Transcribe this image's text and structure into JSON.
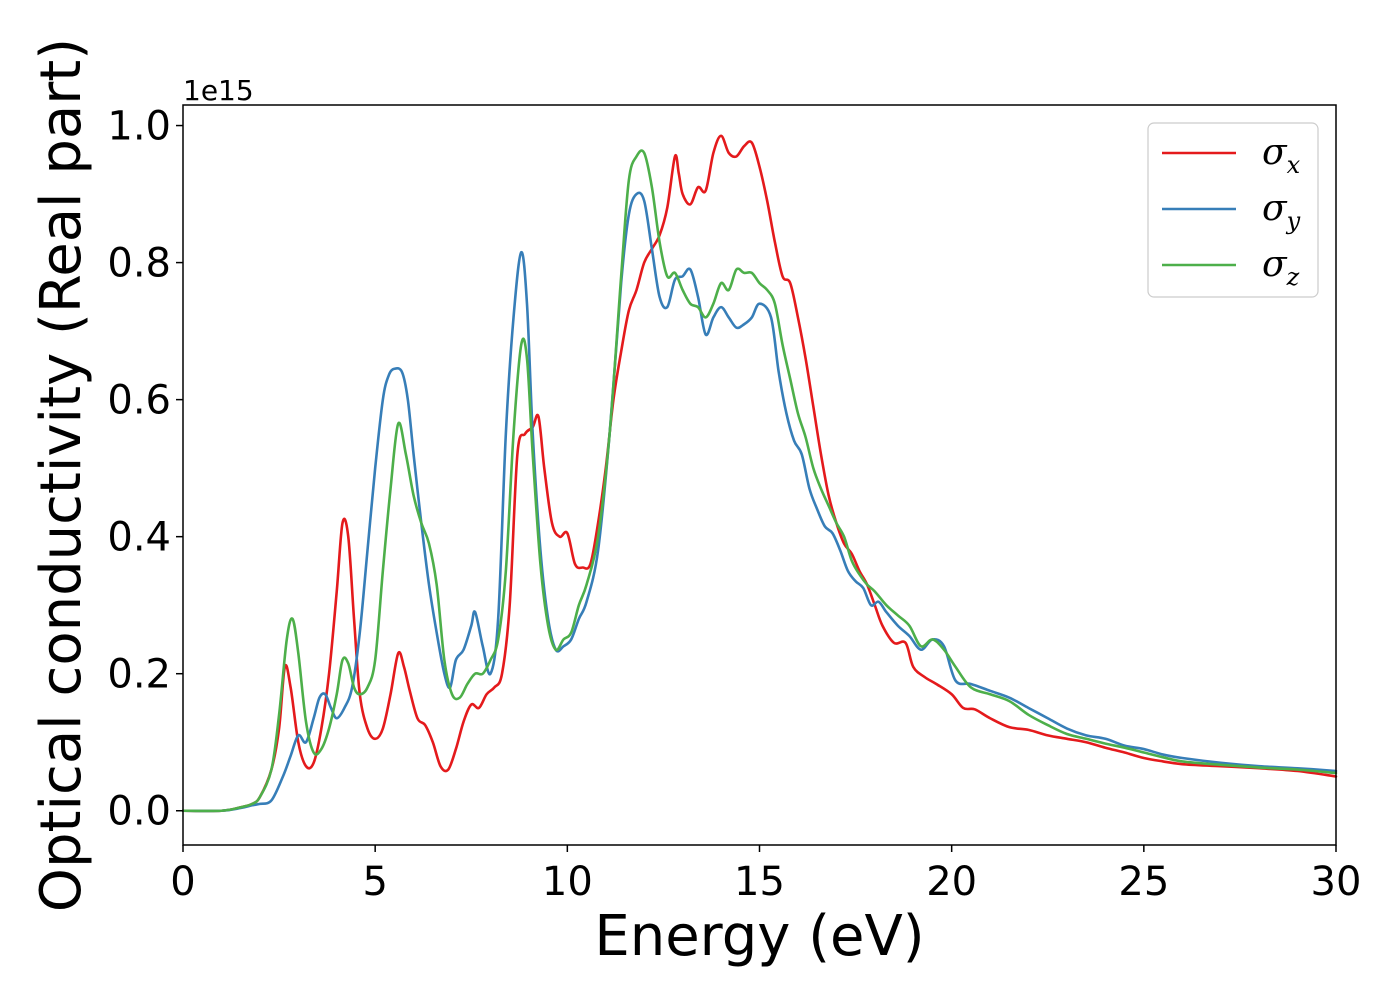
{
  "chart_data": {
    "type": "line",
    "xlabel": "Energy (eV)",
    "ylabel": "Optical conductivity (Real part)",
    "y_offset_label": "1e15",
    "xlim": [
      0,
      30
    ],
    "ylim": [
      -0.05,
      1.03
    ],
    "xticks": [
      0,
      5,
      10,
      15,
      20,
      25,
      30
    ],
    "xtick_labels": [
      "0",
      "5",
      "10",
      "15",
      "20",
      "25",
      "30"
    ],
    "yticks": [
      0.0,
      0.2,
      0.4,
      0.6,
      0.8,
      1.0
    ],
    "ytick_labels": [
      "0.0",
      "0.2",
      "0.4",
      "0.6",
      "0.8",
      "1.0"
    ],
    "grid": false,
    "legend_position": "top-right",
    "series": [
      {
        "name": "σx",
        "symbol": "σ",
        "subscript": "x",
        "color": "#e41a1c",
        "x": [
          0,
          1,
          1.5,
          1.8,
          2.0,
          2.3,
          2.5,
          2.65,
          2.8,
          3.0,
          3.2,
          3.4,
          3.6,
          3.8,
          4.0,
          4.15,
          4.3,
          4.45,
          4.6,
          4.8,
          5.0,
          5.2,
          5.4,
          5.6,
          5.75,
          5.9,
          6.1,
          6.3,
          6.5,
          6.7,
          6.9,
          7.1,
          7.3,
          7.5,
          7.7,
          7.9,
          8.1,
          8.3,
          8.5,
          8.7,
          8.9,
          9.1,
          9.25,
          9.4,
          9.6,
          9.8,
          10.0,
          10.2,
          10.4,
          10.6,
          10.8,
          11.0,
          11.2,
          11.4,
          11.6,
          11.8,
          12.0,
          12.2,
          12.4,
          12.6,
          12.8,
          12.9,
          13.0,
          13.2,
          13.4,
          13.6,
          13.8,
          14.0,
          14.2,
          14.4,
          14.6,
          14.8,
          15.0,
          15.2,
          15.4,
          15.6,
          15.8,
          16.0,
          16.2,
          16.4,
          16.6,
          16.8,
          17.0,
          17.2,
          17.4,
          17.6,
          17.8,
          18.0,
          18.2,
          18.5,
          18.8,
          19.0,
          19.3,
          19.6,
          20.0,
          20.3,
          20.6,
          21.0,
          21.5,
          22.0,
          22.5,
          23.0,
          23.5,
          24.0,
          24.5,
          25.0,
          25.5,
          26.0,
          27.0,
          28.0,
          29.0,
          30.0
        ],
        "values": [
          0.0,
          0.0,
          0.005,
          0.01,
          0.02,
          0.06,
          0.12,
          0.21,
          0.18,
          0.1,
          0.065,
          0.07,
          0.12,
          0.2,
          0.32,
          0.42,
          0.4,
          0.28,
          0.17,
          0.12,
          0.105,
          0.12,
          0.17,
          0.23,
          0.21,
          0.175,
          0.135,
          0.125,
          0.1,
          0.065,
          0.06,
          0.09,
          0.13,
          0.155,
          0.15,
          0.17,
          0.18,
          0.2,
          0.3,
          0.52,
          0.55,
          0.56,
          0.575,
          0.5,
          0.42,
          0.4,
          0.405,
          0.36,
          0.355,
          0.36,
          0.42,
          0.5,
          0.6,
          0.67,
          0.73,
          0.76,
          0.8,
          0.82,
          0.84,
          0.88,
          0.955,
          0.93,
          0.9,
          0.885,
          0.91,
          0.905,
          0.96,
          0.985,
          0.96,
          0.955,
          0.97,
          0.975,
          0.94,
          0.89,
          0.83,
          0.78,
          0.77,
          0.72,
          0.66,
          0.59,
          0.52,
          0.46,
          0.42,
          0.39,
          0.375,
          0.35,
          0.33,
          0.3,
          0.27,
          0.245,
          0.245,
          0.21,
          0.195,
          0.185,
          0.17,
          0.15,
          0.148,
          0.135,
          0.122,
          0.118,
          0.11,
          0.105,
          0.1,
          0.092,
          0.085,
          0.077,
          0.072,
          0.068,
          0.065,
          0.062,
          0.058,
          0.05
        ]
      },
      {
        "name": "σy",
        "symbol": "σ",
        "subscript": "y",
        "color": "#377eb8",
        "x": [
          0,
          1,
          1.5,
          1.8,
          2.0,
          2.3,
          2.6,
          2.8,
          3.0,
          3.2,
          3.4,
          3.55,
          3.7,
          3.85,
          4.0,
          4.2,
          4.4,
          4.6,
          4.8,
          5.0,
          5.2,
          5.35,
          5.5,
          5.7,
          5.85,
          6.0,
          6.2,
          6.4,
          6.6,
          6.8,
          6.95,
          7.1,
          7.3,
          7.5,
          7.6,
          7.8,
          8.0,
          8.2,
          8.4,
          8.6,
          8.8,
          8.95,
          9.1,
          9.3,
          9.5,
          9.7,
          9.9,
          10.1,
          10.3,
          10.5,
          10.8,
          11.1,
          11.4,
          11.6,
          11.8,
          12.0,
          12.2,
          12.4,
          12.6,
          12.8,
          13.0,
          13.2,
          13.4,
          13.6,
          13.8,
          14.0,
          14.2,
          14.4,
          14.6,
          14.8,
          15.0,
          15.3,
          15.5,
          15.7,
          15.9,
          16.1,
          16.3,
          16.5,
          16.7,
          16.9,
          17.1,
          17.3,
          17.5,
          17.7,
          17.9,
          18.1,
          18.3,
          18.6,
          18.9,
          19.2,
          19.5,
          19.8,
          20.1,
          20.5,
          21.0,
          21.5,
          22.0,
          22.5,
          23.0,
          23.5,
          24.0,
          24.5,
          25.0,
          25.5,
          26.0,
          27.0,
          28.0,
          29.0,
          30.0
        ],
        "values": [
          0.0,
          0.0,
          0.004,
          0.008,
          0.01,
          0.015,
          0.05,
          0.08,
          0.11,
          0.1,
          0.135,
          0.165,
          0.17,
          0.15,
          0.135,
          0.15,
          0.18,
          0.26,
          0.38,
          0.5,
          0.6,
          0.635,
          0.645,
          0.64,
          0.6,
          0.52,
          0.42,
          0.33,
          0.26,
          0.2,
          0.18,
          0.22,
          0.235,
          0.27,
          0.29,
          0.24,
          0.2,
          0.28,
          0.55,
          0.72,
          0.815,
          0.74,
          0.55,
          0.38,
          0.28,
          0.235,
          0.24,
          0.25,
          0.28,
          0.305,
          0.38,
          0.55,
          0.77,
          0.87,
          0.9,
          0.89,
          0.82,
          0.75,
          0.735,
          0.775,
          0.78,
          0.79,
          0.75,
          0.695,
          0.72,
          0.735,
          0.72,
          0.705,
          0.71,
          0.72,
          0.74,
          0.72,
          0.64,
          0.58,
          0.54,
          0.52,
          0.47,
          0.44,
          0.415,
          0.405,
          0.38,
          0.35,
          0.335,
          0.325,
          0.3,
          0.305,
          0.29,
          0.27,
          0.255,
          0.235,
          0.25,
          0.24,
          0.19,
          0.185,
          0.175,
          0.165,
          0.15,
          0.135,
          0.12,
          0.11,
          0.105,
          0.095,
          0.09,
          0.082,
          0.077,
          0.07,
          0.065,
          0.062,
          0.058
        ]
      },
      {
        "name": "σz",
        "symbol": "σ",
        "subscript": "z",
        "color": "#4daf4a",
        "x": [
          0,
          1,
          1.5,
          1.8,
          2.0,
          2.3,
          2.5,
          2.7,
          2.85,
          3.0,
          3.2,
          3.4,
          3.6,
          3.8,
          4.0,
          4.15,
          4.3,
          4.45,
          4.6,
          4.8,
          5.0,
          5.2,
          5.4,
          5.6,
          5.8,
          6.0,
          6.2,
          6.4,
          6.6,
          6.8,
          7.0,
          7.2,
          7.4,
          7.6,
          7.8,
          8.0,
          8.2,
          8.4,
          8.6,
          8.8,
          8.95,
          9.1,
          9.3,
          9.5,
          9.7,
          9.9,
          10.1,
          10.3,
          10.5,
          10.8,
          11.1,
          11.4,
          11.6,
          11.8,
          12.0,
          12.2,
          12.4,
          12.6,
          12.8,
          13.0,
          13.2,
          13.4,
          13.6,
          13.8,
          14.0,
          14.2,
          14.4,
          14.6,
          14.8,
          15.0,
          15.2,
          15.4,
          15.6,
          15.8,
          16.0,
          16.2,
          16.4,
          16.6,
          16.8,
          17.0,
          17.2,
          17.4,
          17.6,
          17.8,
          18.0,
          18.3,
          18.6,
          18.9,
          19.2,
          19.5,
          19.8,
          20.1,
          20.5,
          21.0,
          21.5,
          22.0,
          22.5,
          23.0,
          23.5,
          24.0,
          24.5,
          25.0,
          25.5,
          26.0,
          27.0,
          28.0,
          29.0,
          30.0
        ],
        "values": [
          0.0,
          0.0,
          0.005,
          0.01,
          0.02,
          0.06,
          0.14,
          0.25,
          0.28,
          0.23,
          0.13,
          0.085,
          0.09,
          0.12,
          0.17,
          0.22,
          0.215,
          0.18,
          0.17,
          0.18,
          0.22,
          0.35,
          0.47,
          0.565,
          0.52,
          0.46,
          0.42,
          0.39,
          0.33,
          0.22,
          0.17,
          0.165,
          0.185,
          0.2,
          0.2,
          0.22,
          0.25,
          0.35,
          0.55,
          0.68,
          0.66,
          0.52,
          0.36,
          0.27,
          0.235,
          0.25,
          0.26,
          0.3,
          0.33,
          0.4,
          0.55,
          0.78,
          0.92,
          0.955,
          0.96,
          0.91,
          0.83,
          0.78,
          0.785,
          0.76,
          0.74,
          0.735,
          0.72,
          0.74,
          0.77,
          0.76,
          0.79,
          0.785,
          0.785,
          0.77,
          0.76,
          0.74,
          0.68,
          0.63,
          0.58,
          0.545,
          0.5,
          0.47,
          0.445,
          0.42,
          0.4,
          0.365,
          0.345,
          0.33,
          0.32,
          0.3,
          0.285,
          0.27,
          0.24,
          0.25,
          0.235,
          0.21,
          0.18,
          0.17,
          0.16,
          0.14,
          0.125,
          0.112,
          0.105,
          0.098,
          0.092,
          0.085,
          0.078,
          0.072,
          0.067,
          0.063,
          0.06,
          0.055
        ]
      }
    ]
  }
}
